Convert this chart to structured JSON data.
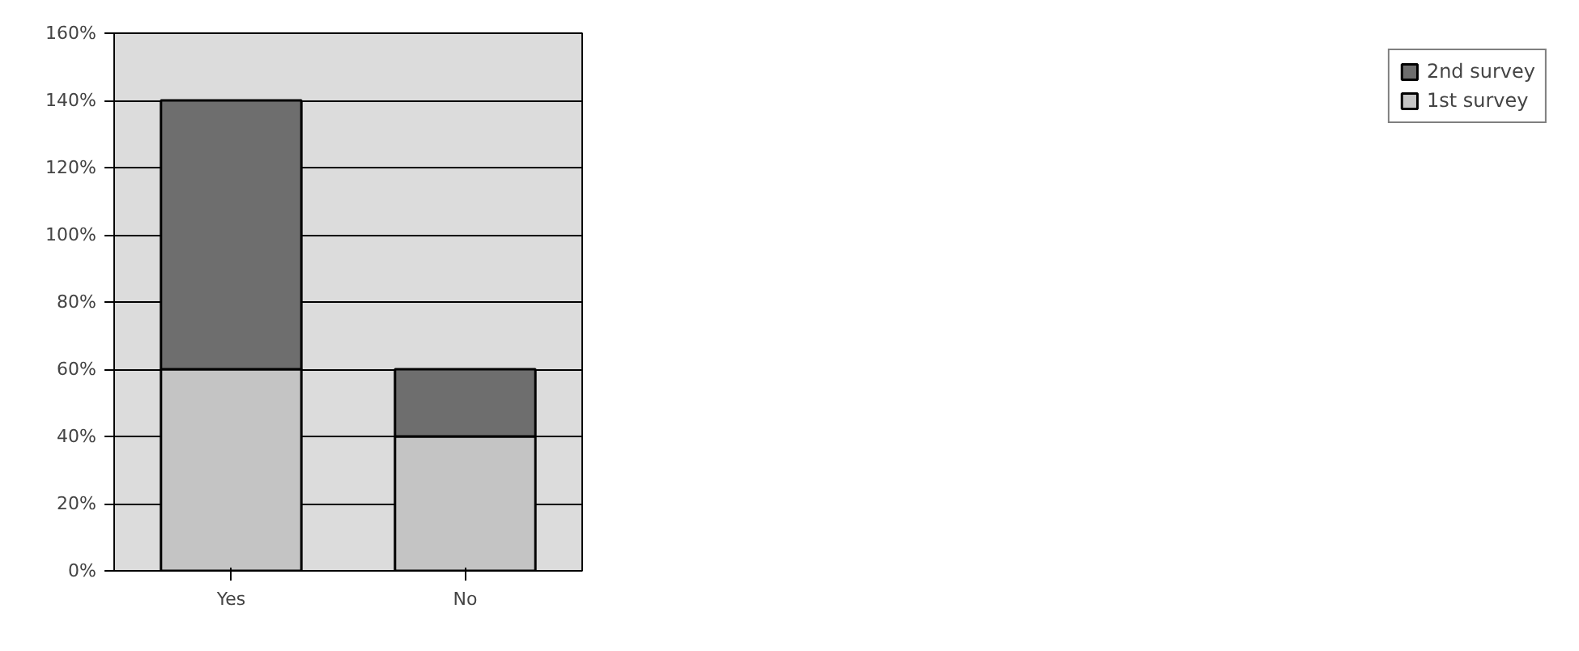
{
  "chart_data": {
    "type": "bar",
    "stacked": true,
    "categories": [
      "Yes",
      "No"
    ],
    "series": [
      {
        "name": "1st survey",
        "color": "#c4c4c4",
        "values": [
          60,
          40
        ]
      },
      {
        "name": "2nd survey",
        "color": "#6e6e6e",
        "values": [
          80,
          20
        ]
      }
    ],
    "ylim": [
      0,
      160
    ],
    "yticks": [
      {
        "value": 0,
        "label": "0%"
      },
      {
        "value": 20,
        "label": "20%"
      },
      {
        "value": 40,
        "label": "40%"
      },
      {
        "value": 60,
        "label": "60%"
      },
      {
        "value": 80,
        "label": "80%"
      },
      {
        "value": 100,
        "label": "100%"
      },
      {
        "value": 120,
        "label": "120%"
      },
      {
        "value": 140,
        "label": "140%"
      },
      {
        "value": 160,
        "label": "160%"
      }
    ],
    "grid": "y",
    "legend": "right"
  }
}
